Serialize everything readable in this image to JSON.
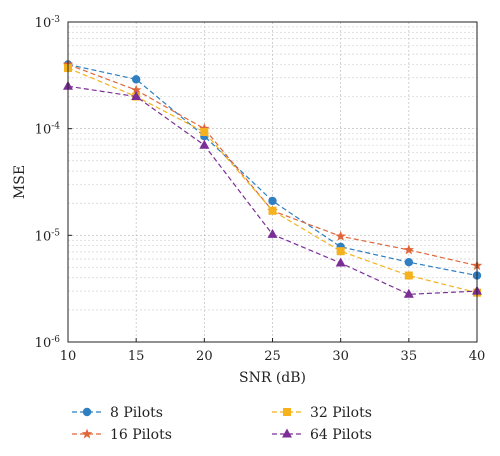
{
  "chart_data": {
    "type": "line",
    "xlabel": "SNR (dB)",
    "ylabel": "MSE",
    "x": [
      10,
      15,
      20,
      25,
      30,
      35,
      40
    ],
    "xlim": [
      10,
      40
    ],
    "ylim": [
      1e-06,
      0.001
    ],
    "yscale": "log",
    "grid": true,
    "legend_position": "bottom",
    "x_ticks": [
      {
        "value": 10,
        "label": "10"
      },
      {
        "value": 15,
        "label": "15"
      },
      {
        "value": 20,
        "label": "20"
      },
      {
        "value": 25,
        "label": "25"
      },
      {
        "value": 30,
        "label": "30"
      },
      {
        "value": 35,
        "label": "35"
      },
      {
        "value": 40,
        "label": "40"
      }
    ],
    "y_ticks": [
      {
        "value": 0.001,
        "base": "10",
        "exp": "-3"
      },
      {
        "value": 0.0001,
        "base": "10",
        "exp": "-4"
      },
      {
        "value": 1e-05,
        "base": "10",
        "exp": "-5"
      },
      {
        "value": 1e-06,
        "base": "10",
        "exp": "-6"
      }
    ],
    "series": [
      {
        "name": "8 Pilots",
        "color": "#2f7fc1",
        "marker": "circle",
        "values": [
          0.0004,
          0.00029,
          8.5e-05,
          2.1e-05,
          7.8e-06,
          5.6e-06,
          4.2e-06
        ]
      },
      {
        "name": "16 Pilots",
        "color": "#e0663a",
        "marker": "star",
        "values": [
          0.0004,
          0.00023,
          0.0001,
          1.7e-05,
          9.8e-06,
          7.3e-06,
          5.2e-06
        ]
      },
      {
        "name": "32 Pilots",
        "color": "#f5b21d",
        "marker": "square",
        "values": [
          0.00037,
          0.0002,
          9.3e-05,
          1.7e-05,
          7.1e-06,
          4.2e-06,
          2.9e-06
        ]
      },
      {
        "name": "64 Pilots",
        "color": "#7b2f96",
        "marker": "triangle",
        "values": [
          0.00025,
          0.0002,
          7e-05,
          1.02e-05,
          5.5e-06,
          2.8e-06,
          3e-06
        ]
      }
    ]
  }
}
